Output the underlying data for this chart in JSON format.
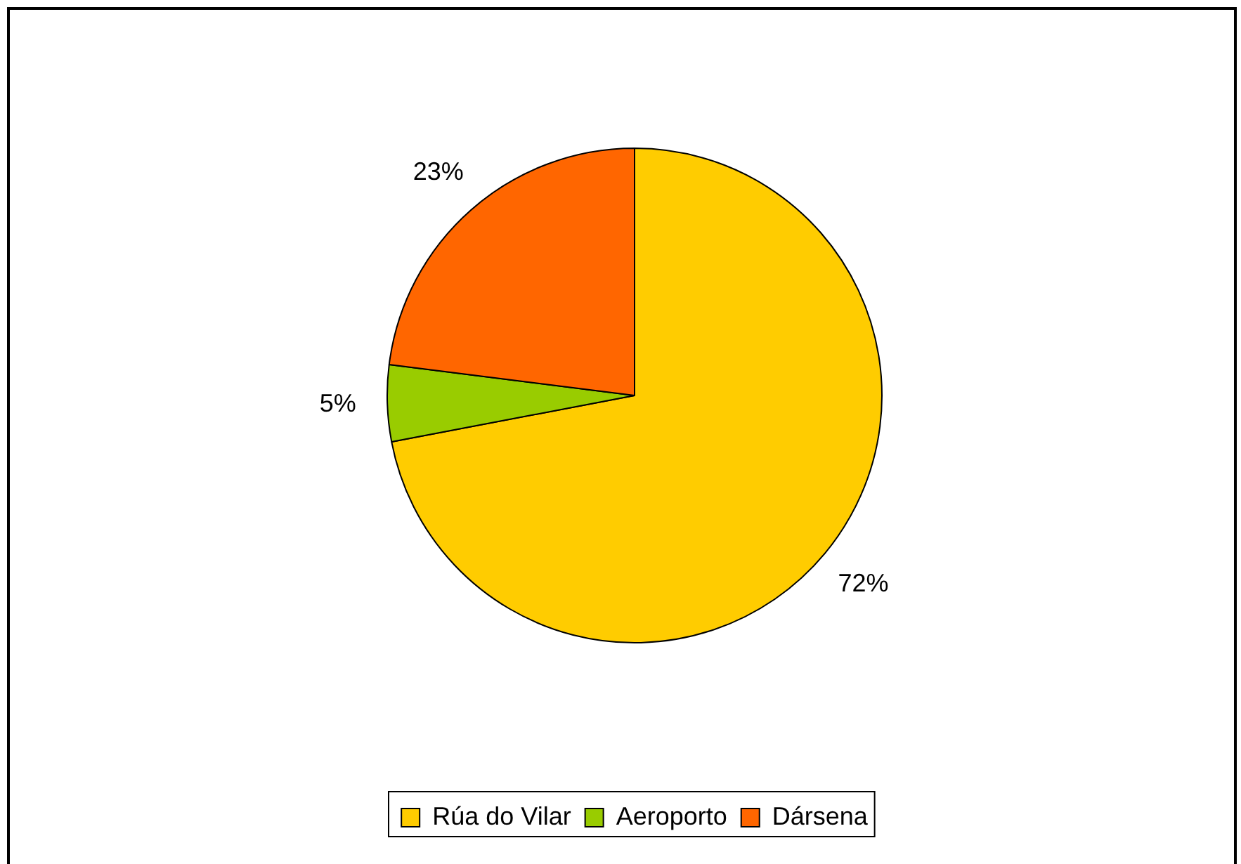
{
  "chart_data": {
    "type": "pie",
    "categories": [
      "Rúa do Vilar",
      "Aeroporto",
      "Dársena"
    ],
    "values": [
      72,
      5,
      23
    ],
    "colors": [
      "#ffcc00",
      "#99cc00",
      "#ff6600"
    ],
    "value_labels": [
      "72%",
      "5%",
      "23%"
    ],
    "legend": "bottom"
  }
}
